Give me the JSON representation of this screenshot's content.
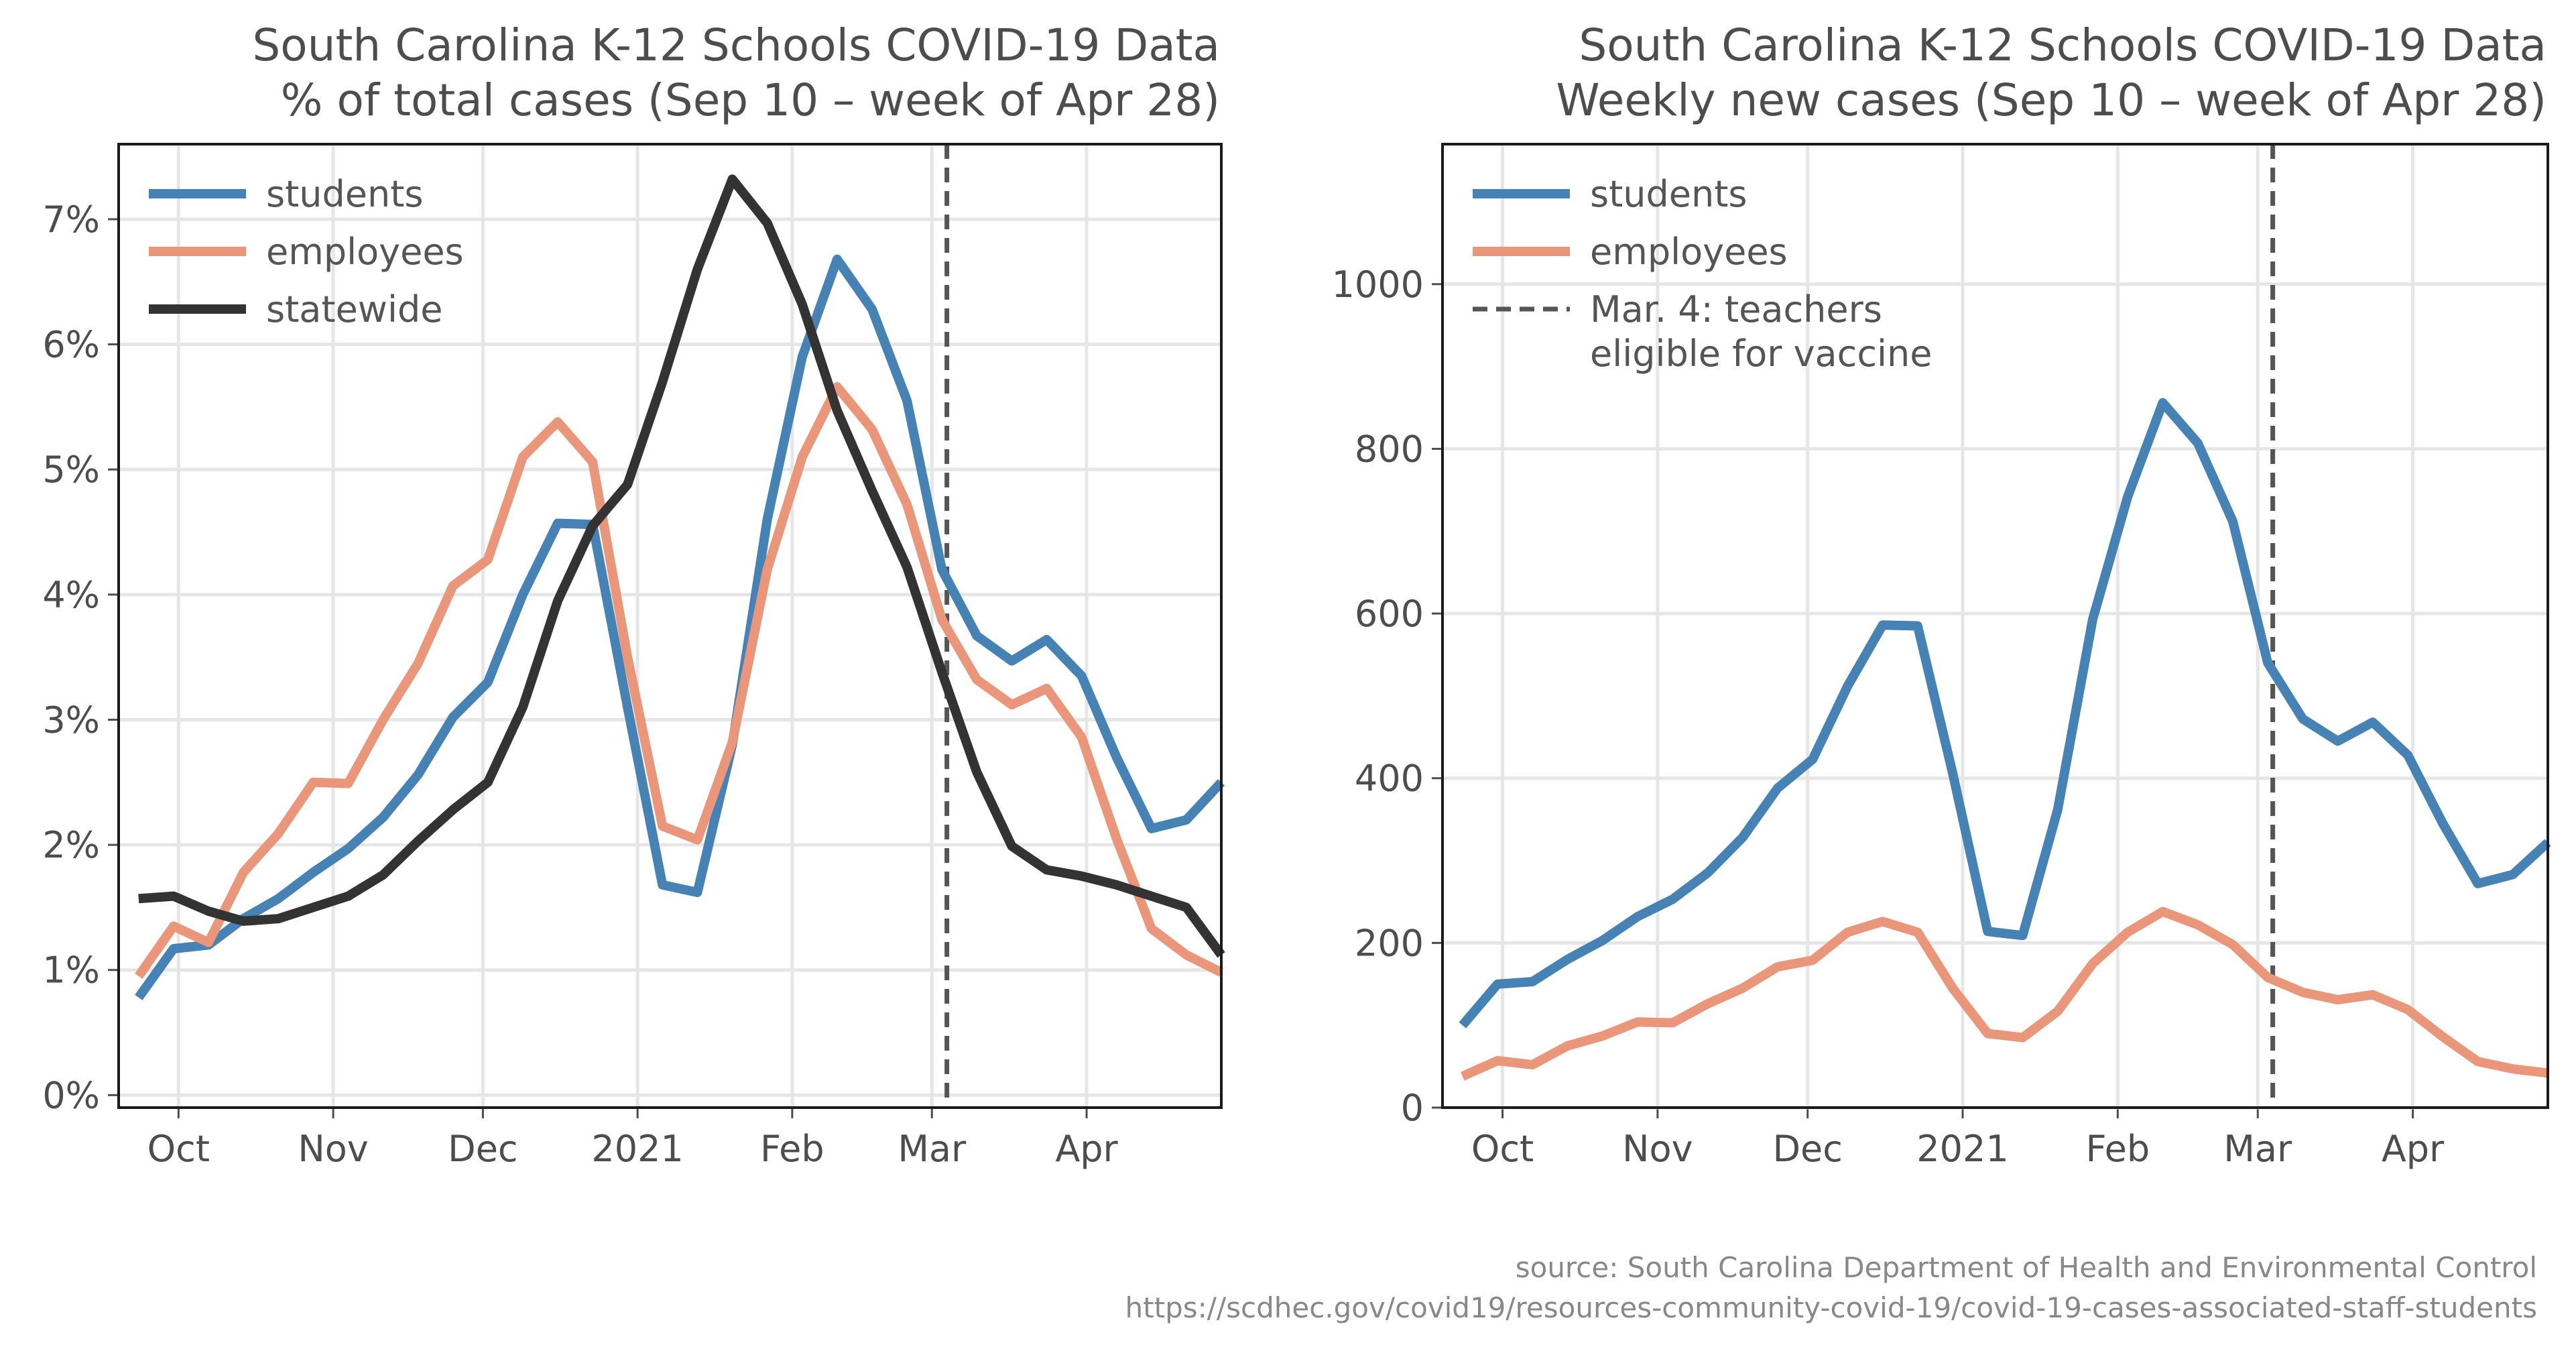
{
  "chart_data": [
    {
      "type": "line",
      "title_line1": "South Carolina K-12 Schools COVID-19 Data",
      "title_line2": "% of total cases (Sep 10 – week of Apr 28)",
      "xlabel": "",
      "ylabel": "",
      "x": [
        "2020-09-23",
        "2020-09-30",
        "2020-10-07",
        "2020-10-14",
        "2020-10-21",
        "2020-10-28",
        "2020-11-04",
        "2020-11-11",
        "2020-11-18",
        "2020-11-25",
        "2020-12-02",
        "2020-12-09",
        "2020-12-16",
        "2020-12-23",
        "2020-12-30",
        "2021-01-06",
        "2021-01-13",
        "2021-01-20",
        "2021-01-27",
        "2021-02-03",
        "2021-02-10",
        "2021-02-17",
        "2021-02-24",
        "2021-03-03",
        "2021-03-10",
        "2021-03-17",
        "2021-03-24",
        "2021-03-31",
        "2021-04-07",
        "2021-04-14",
        "2021-04-21",
        "2021-04-28"
      ],
      "series": [
        {
          "name": "students",
          "color": "#4682b4",
          "values": [
            0.78,
            1.17,
            1.2,
            1.41,
            1.57,
            1.78,
            1.97,
            2.22,
            2.56,
            3.02,
            3.3,
            4.0,
            4.57,
            4.56,
            3.1,
            1.68,
            1.62,
            2.8,
            4.6,
            5.9,
            6.68,
            6.28,
            5.55,
            4.2,
            3.67,
            3.47,
            3.64,
            3.35,
            2.7,
            2.13,
            2.2,
            2.5
          ]
        },
        {
          "name": "employees",
          "color": "#e9967a",
          "values": [
            0.95,
            1.35,
            1.22,
            1.78,
            2.09,
            2.5,
            2.49,
            3.0,
            3.45,
            4.07,
            4.28,
            5.1,
            5.38,
            5.06,
            3.5,
            2.15,
            2.04,
            2.82,
            4.2,
            5.1,
            5.66,
            5.32,
            4.72,
            3.8,
            3.32,
            3.12,
            3.25,
            2.86,
            2.05,
            1.33,
            1.12,
            0.98
          ]
        },
        {
          "name": "statewide",
          "color": "#333333",
          "values": [
            1.57,
            1.59,
            1.47,
            1.39,
            1.41,
            1.5,
            1.59,
            1.76,
            2.03,
            2.28,
            2.5,
            3.1,
            3.95,
            4.55,
            4.88,
            5.7,
            6.6,
            7.32,
            6.97,
            6.32,
            5.47,
            4.83,
            4.22,
            3.38,
            2.58,
            1.99,
            1.8,
            1.75,
            1.68,
            1.59,
            1.5,
            1.12
          ]
        }
      ],
      "vline": {
        "x": "2021-03-04",
        "color": "#555555"
      },
      "xlim": [
        "2020-09-19",
        "2021-04-28"
      ],
      "xticks": [
        {
          "date": "2020-10-01",
          "label": "Oct"
        },
        {
          "date": "2020-11-01",
          "label": "Nov"
        },
        {
          "date": "2020-12-01",
          "label": "Dec"
        },
        {
          "date": "2021-01-01",
          "label": "2021"
        },
        {
          "date": "2021-02-01",
          "label": "Feb"
        },
        {
          "date": "2021-03-01",
          "label": "Mar"
        },
        {
          "date": "2021-04-01",
          "label": "Apr"
        }
      ],
      "ylim": [
        -0.1,
        7.6
      ],
      "yticks": [
        {
          "value": 0,
          "label": "0%"
        },
        {
          "value": 1,
          "label": "1%"
        },
        {
          "value": 2,
          "label": "2%"
        },
        {
          "value": 3,
          "label": "3%"
        },
        {
          "value": 4,
          "label": "4%"
        },
        {
          "value": 5,
          "label": "5%"
        },
        {
          "value": 6,
          "label": "6%"
        },
        {
          "value": 7,
          "label": "7%"
        }
      ],
      "grid": true,
      "legend": {
        "position": "top-left",
        "entries": [
          {
            "label": "students",
            "color": "#4682b4",
            "style": "solid"
          },
          {
            "label": "employees",
            "color": "#e9967a",
            "style": "solid"
          },
          {
            "label": "statewide",
            "color": "#333333",
            "style": "solid"
          }
        ]
      }
    },
    {
      "type": "line",
      "title_line1": "South Carolina K-12 Schools COVID-19 Data",
      "title_line2": "Weekly new cases (Sep 10 – week of Apr 28)",
      "xlabel": "",
      "ylabel": "",
      "x": [
        "2020-09-23",
        "2020-09-30",
        "2020-10-07",
        "2020-10-14",
        "2020-10-21",
        "2020-10-28",
        "2020-11-04",
        "2020-11-11",
        "2020-11-18",
        "2020-11-25",
        "2020-12-02",
        "2020-12-09",
        "2020-12-16",
        "2020-12-23",
        "2020-12-30",
        "2021-01-06",
        "2021-01-13",
        "2021-01-20",
        "2021-01-27",
        "2021-02-03",
        "2021-02-10",
        "2021-02-17",
        "2021-02-24",
        "2021-03-03",
        "2021-03-10",
        "2021-03-17",
        "2021-03-24",
        "2021-03-31",
        "2021-04-07",
        "2021-04-14",
        "2021-04-21",
        "2021-04-28"
      ],
      "series": [
        {
          "name": "students",
          "color": "#4682b4",
          "values": [
            100,
            150,
            153,
            180,
            203,
            232,
            253,
            285,
            328,
            388,
            423,
            512,
            586,
            585,
            406,
            214,
            209,
            362,
            593,
            742,
            856,
            807,
            712,
            540,
            472,
            445,
            468,
            428,
            345,
            272,
            283,
            322
          ]
        },
        {
          "name": "employees",
          "color": "#e9967a",
          "values": [
            38,
            57,
            52,
            75,
            87,
            104,
            103,
            126,
            145,
            171,
            179,
            213,
            226,
            213,
            145,
            90,
            85,
            117,
            175,
            213,
            238,
            222,
            198,
            158,
            140,
            131,
            137,
            119,
            86,
            56,
            47,
            42
          ]
        }
      ],
      "vline": {
        "x": "2021-03-04",
        "color": "#555555"
      },
      "xlim": [
        "2020-09-19",
        "2021-04-28"
      ],
      "xticks": [
        {
          "date": "2020-10-01",
          "label": "Oct"
        },
        {
          "date": "2020-11-01",
          "label": "Nov"
        },
        {
          "date": "2020-12-01",
          "label": "Dec"
        },
        {
          "date": "2021-01-01",
          "label": "2021"
        },
        {
          "date": "2021-02-01",
          "label": "Feb"
        },
        {
          "date": "2021-03-01",
          "label": "Mar"
        },
        {
          "date": "2021-04-01",
          "label": "Apr"
        }
      ],
      "ylim": [
        0,
        1170
      ],
      "yticks": [
        {
          "value": 0,
          "label": "0"
        },
        {
          "value": 200,
          "label": "200"
        },
        {
          "value": 400,
          "label": "400"
        },
        {
          "value": 600,
          "label": "600"
        },
        {
          "value": 800,
          "label": "800"
        },
        {
          "value": 1000,
          "label": "1000"
        }
      ],
      "grid": true,
      "legend": {
        "position": "top-left",
        "entries": [
          {
            "label": "students",
            "color": "#4682b4",
            "style": "solid"
          },
          {
            "label": "employees",
            "color": "#e9967a",
            "style": "solid"
          },
          {
            "label": "Mar. 4: teachers",
            "label2": "eligible for vaccine",
            "color": "#555555",
            "style": "dashed"
          }
        ]
      }
    }
  ],
  "source": {
    "line1": "source: South Carolina Department of Health and Environmental Control",
    "line2": "https://scdhec.gov/covid19/resources-community-covid-19/covid-19-cases-associated-staff-students"
  }
}
